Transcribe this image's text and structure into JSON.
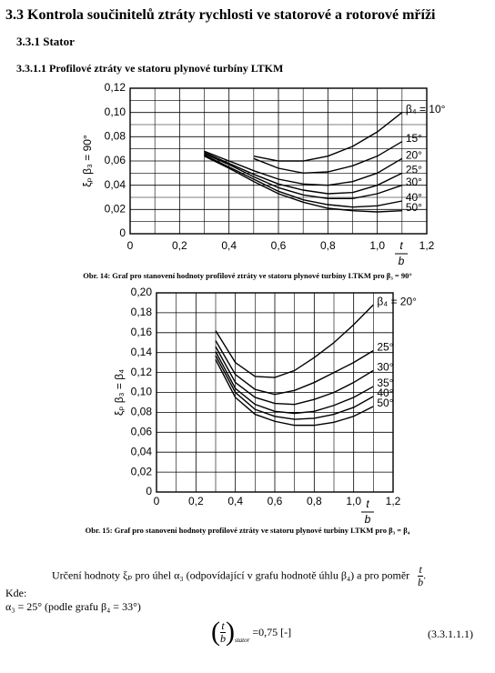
{
  "heading": "3.3 Kontrola součinitelů ztráty rychlosti ve statorové a rotorové mříži",
  "subheading": "3.3.1 Stator",
  "subsubheading": "3.3.1.1 Profilové ztráty ve statoru plynové turbíny LTKM",
  "chart_data": [
    {
      "type": "line",
      "y_label": "ξₚ β₃ = 90°",
      "x_label_num": "t",
      "x_label_den": "b",
      "caption": "Obr. 14: Graf pro stanovení hodnoty profilové ztráty ve statoru plynové turbíny LTKM pro β₃ = 90°",
      "xlim": [
        0,
        1.2
      ],
      "xticks": [
        0,
        {
          "value": 0.2,
          "label": "0,2"
        },
        {
          "value": 0.4,
          "label": "0,4"
        },
        {
          "value": 0.6,
          "label": "0,6"
        },
        {
          "value": 0.8,
          "label": "0,8"
        },
        {
          "value": 1.0,
          "label": "1,0"
        },
        {
          "value": 1.2,
          "label": "1,2"
        }
      ],
      "x_minor_grid": [
        0.1,
        0.3,
        0.5,
        0.7,
        0.9,
        1.1
      ],
      "ylim": [
        0,
        0.12
      ],
      "yticks": [
        0,
        {
          "value": 0.02,
          "label": "0,02"
        },
        {
          "value": 0.04,
          "label": "0,04"
        },
        {
          "value": 0.06,
          "label": "0,06"
        },
        {
          "value": 0.08,
          "label": "0,08"
        },
        {
          "value": 0.1,
          "label": "0,10"
        },
        {
          "value": 0.12,
          "label": "0,12"
        }
      ],
      "y_minor_grid": [
        0.01,
        0.03,
        0.05,
        0.07,
        0.09,
        0.11
      ],
      "grid": true,
      "x": [
        0.3,
        0.4,
        0.5,
        0.6,
        0.7,
        0.8,
        0.9,
        1.0,
        1.1
      ],
      "series": [
        {
          "name": "β₄ = 10°",
          "color": "#000000",
          "values": [
            null,
            null,
            0.064,
            0.06,
            0.06,
            0.064,
            0.072,
            0.084,
            0.1
          ]
        },
        {
          "name": "15°",
          "color": "#000000",
          "values": [
            null,
            null,
            0.062,
            0.054,
            0.05,
            0.051,
            0.056,
            0.064,
            0.076
          ]
        },
        {
          "name": "20°",
          "color": "#000000",
          "values": [
            0.068,
            0.06,
            0.052,
            0.045,
            0.041,
            0.04,
            0.043,
            0.05,
            0.062
          ]
        },
        {
          "name": "25°",
          "color": "#000000",
          "values": [
            0.067,
            0.058,
            0.049,
            0.041,
            0.036,
            0.033,
            0.034,
            0.04,
            0.05
          ]
        },
        {
          "name": "30°",
          "color": "#000000",
          "values": [
            0.066,
            0.057,
            0.047,
            0.038,
            0.032,
            0.029,
            0.029,
            0.033,
            0.04
          ]
        },
        {
          "name": "40°",
          "color": "#000000",
          "values": [
            0.065,
            0.055,
            0.045,
            0.035,
            0.028,
            0.024,
            0.022,
            0.023,
            0.027
          ]
        },
        {
          "name": "50°",
          "color": "#000000",
          "values": [
            0.064,
            0.054,
            0.043,
            0.033,
            0.026,
            0.021,
            0.019,
            0.018,
            0.019
          ]
        }
      ]
    },
    {
      "type": "line",
      "y_label": "ξₚ β₃ = β₄",
      "x_label_num": "t",
      "x_label_den": "b",
      "caption": "Obr. 15: Graf pro stanovení hodnoty profilové ztráty ve statoru plynové turbíny LTKM pro β₃ = β₄",
      "xlim": [
        0,
        1.2
      ],
      "xticks": [
        0,
        {
          "value": 0.2,
          "label": "0,2"
        },
        {
          "value": 0.4,
          "label": "0,4"
        },
        {
          "value": 0.6,
          "label": "0,6"
        },
        {
          "value": 0.8,
          "label": "0,8"
        },
        {
          "value": 1.0,
          "label": "1,0"
        },
        {
          "value": 1.2,
          "label": "1,2"
        }
      ],
      "x_minor_grid": [
        0.1,
        0.3,
        0.5,
        0.7,
        0.9,
        1.1
      ],
      "ylim": [
        0,
        0.2
      ],
      "yticks": [
        0,
        {
          "value": 0.02,
          "label": "0,02"
        },
        {
          "value": 0.04,
          "label": "0,04"
        },
        {
          "value": 0.06,
          "label": "0,06"
        },
        {
          "value": 0.08,
          "label": "0,08"
        },
        {
          "value": 0.1,
          "label": "0,10"
        },
        {
          "value": 0.12,
          "label": "0,12"
        },
        {
          "value": 0.14,
          "label": "0,14"
        },
        {
          "value": 0.16,
          "label": "0,16"
        },
        {
          "value": 0.18,
          "label": "0,18"
        },
        {
          "value": 0.2,
          "label": "0,20"
        }
      ],
      "y_minor_grid": [],
      "grid": true,
      "x": [
        0.3,
        0.4,
        0.5,
        0.6,
        0.7,
        0.8,
        0.9,
        1.0,
        1.1
      ],
      "series": [
        {
          "name": "β₄ = 20°",
          "color": "#000000",
          "values": [
            0.162,
            0.13,
            0.116,
            0.115,
            0.122,
            0.135,
            0.15,
            0.168,
            0.188
          ]
        },
        {
          "name": "25°",
          "color": "#000000",
          "values": [
            0.152,
            0.118,
            0.103,
            0.098,
            0.102,
            0.11,
            0.12,
            0.13,
            0.142
          ]
        },
        {
          "name": "30°",
          "color": "#000000",
          "values": [
            0.146,
            0.11,
            0.095,
            0.089,
            0.088,
            0.093,
            0.1,
            0.11,
            0.122
          ]
        },
        {
          "name": "35°",
          "color": "#000000",
          "values": [
            0.141,
            0.104,
            0.088,
            0.081,
            0.079,
            0.081,
            0.087,
            0.095,
            0.106
          ]
        },
        {
          "name": "40°",
          "color": "#000000",
          "values": [
            0.137,
            0.1,
            0.083,
            0.076,
            0.073,
            0.074,
            0.078,
            0.085,
            0.096
          ]
        },
        {
          "name": "50°",
          "color": "#000000",
          "values": [
            0.133,
            0.095,
            0.078,
            0.071,
            0.067,
            0.067,
            0.07,
            0.076,
            0.086
          ]
        }
      ]
    }
  ],
  "paragraph": "Určení hodnoty ξₚ pro úhel α₃ (odpovídající v grafu hodnotě úhlu β₄) a pro poměr",
  "paragraph_frac_num": "t",
  "paragraph_frac_den": "b",
  "paragraph_end": ".",
  "kde": "Kde:",
  "alpha_line": "α₃ = 25° (podle grafu β₄ = 33°)",
  "equation": {
    "num": "t",
    "den": "b",
    "subscript": "stator",
    "rhs": "=0,75  [-]",
    "number": "(3.3.1.1.1)"
  }
}
